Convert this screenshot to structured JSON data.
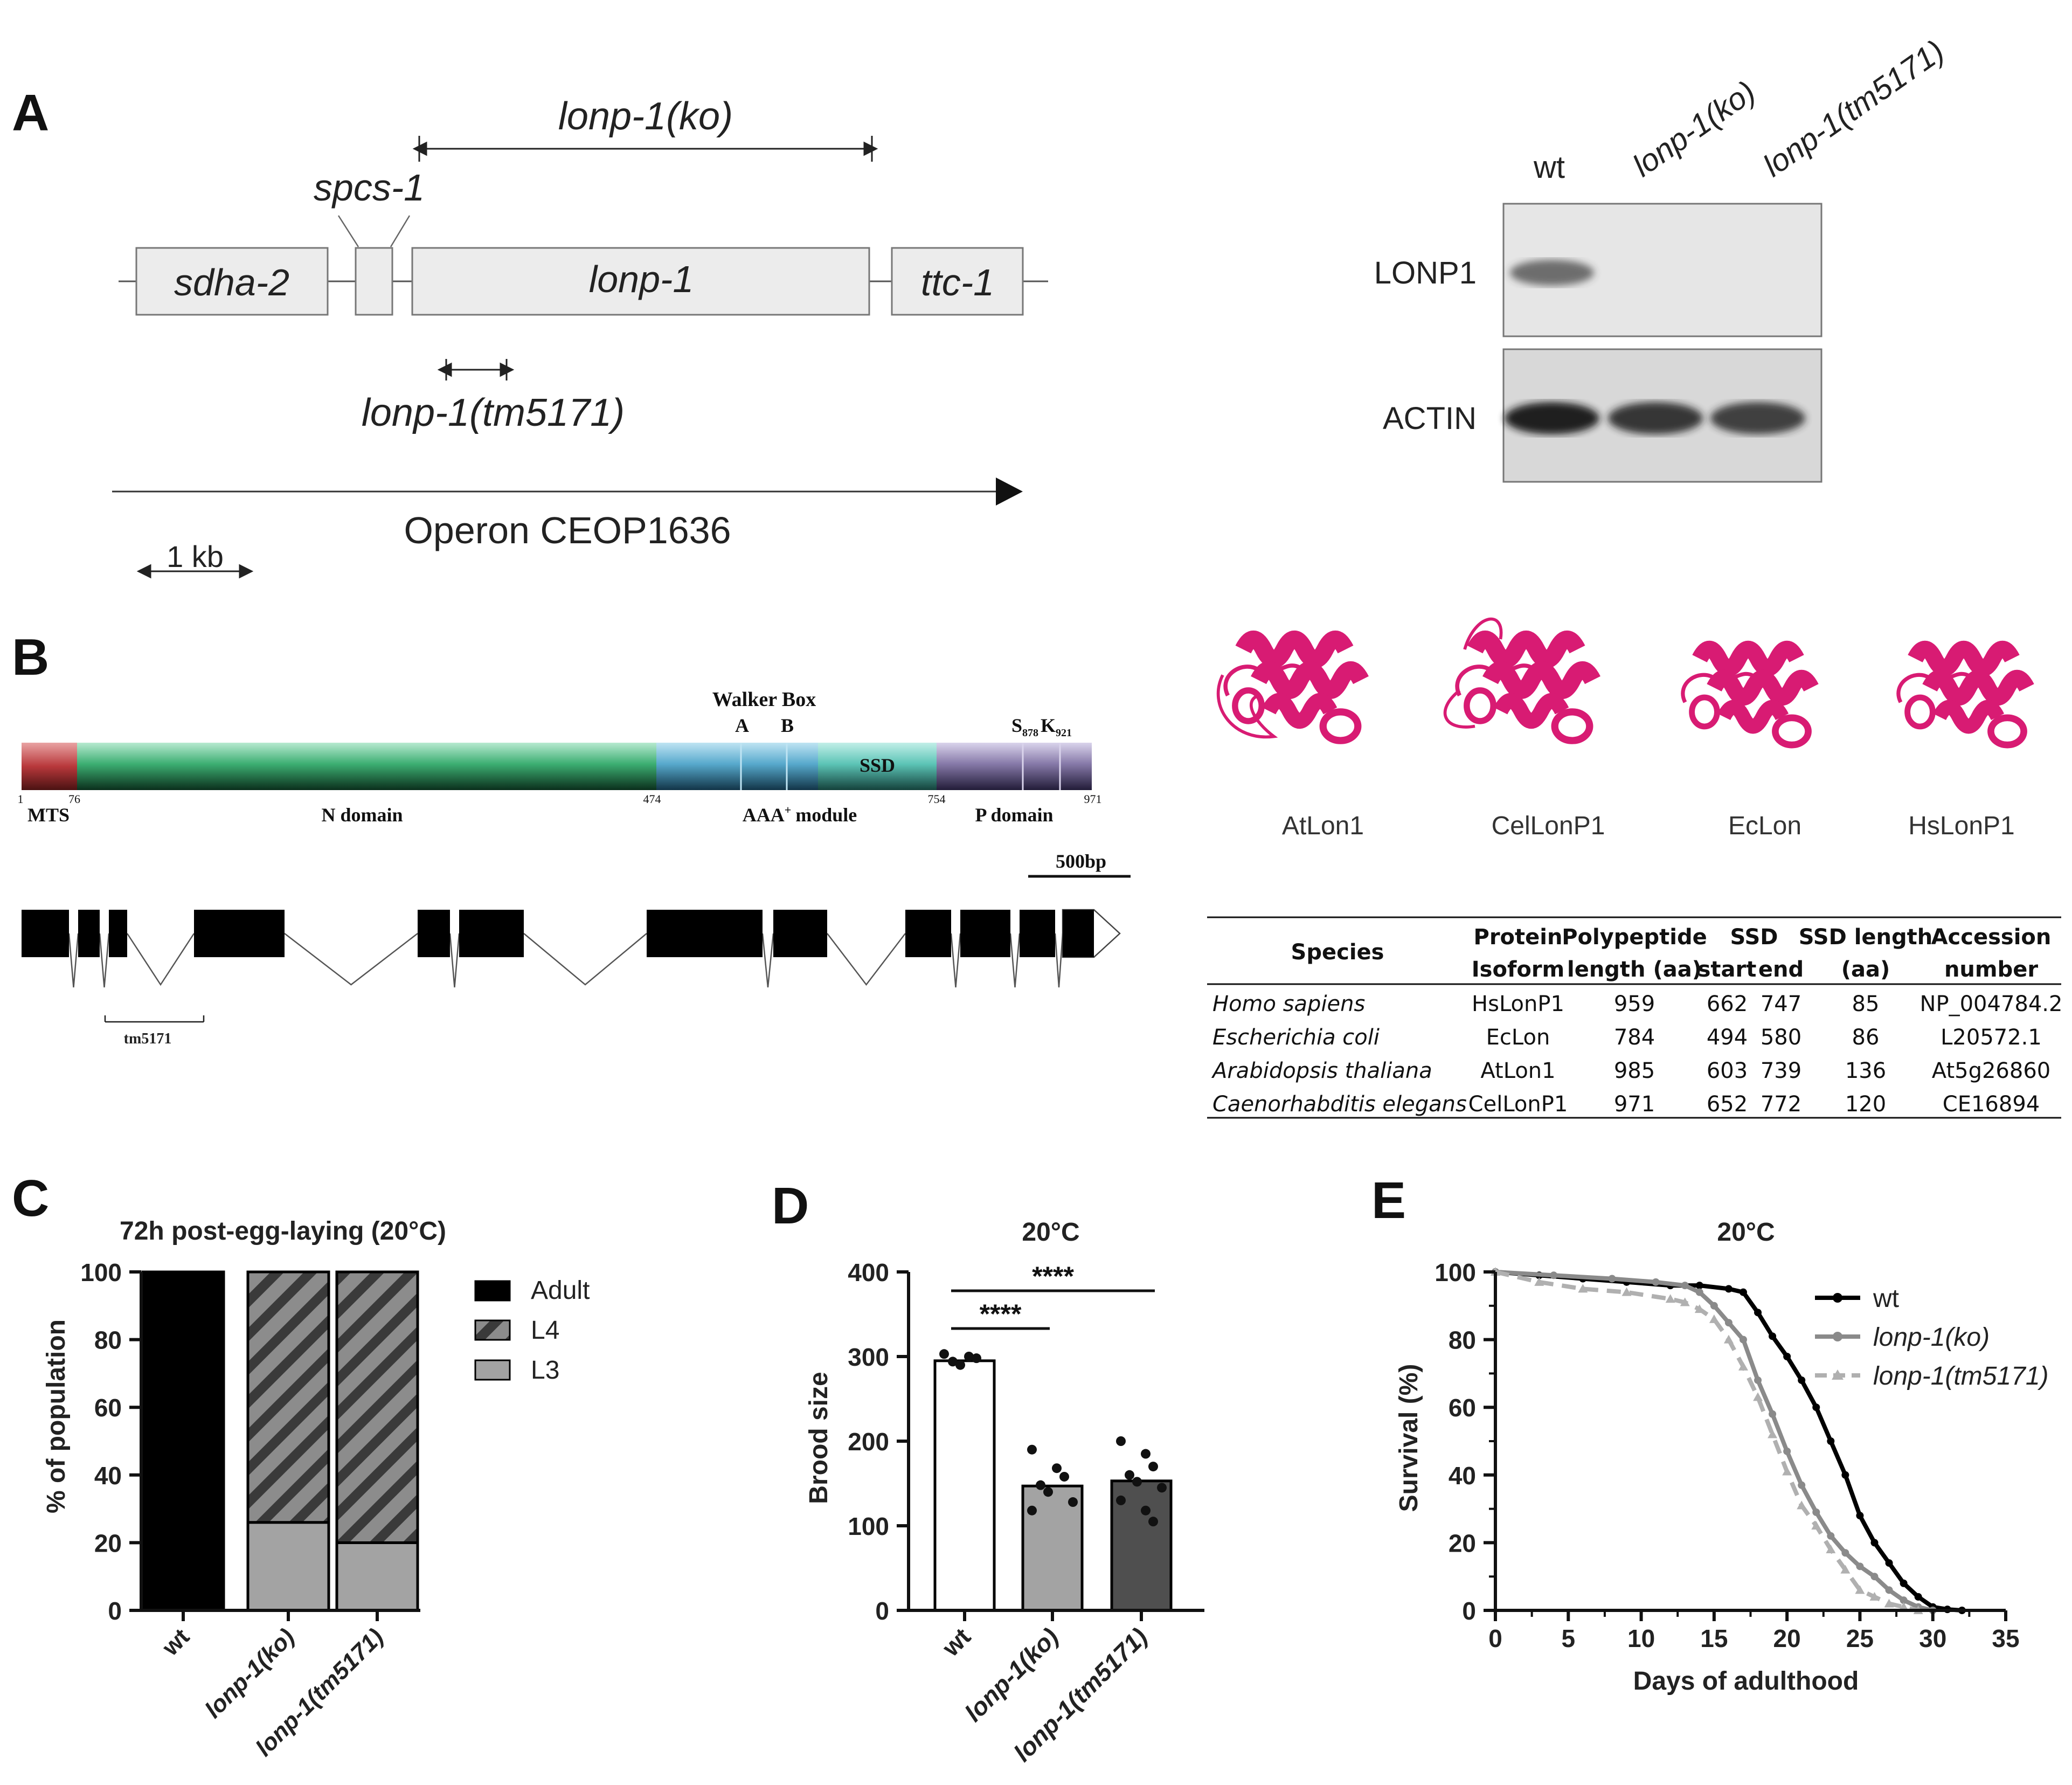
{
  "panels": {
    "A": {
      "letter": "A",
      "genes": [
        {
          "name": "sdha-2"
        },
        {
          "name": "spcs-1"
        },
        {
          "name": "lonp-1"
        },
        {
          "name": "ttc-1"
        }
      ],
      "ko_label": "lonp-1(ko)",
      "tm_label": "lonp-1(tm5171)",
      "operon_label": "Operon CEOP1636",
      "scale_label": "1 kb",
      "blot": {
        "lanes": [
          "wt",
          "lonp-1(ko)",
          "lonp-1(tm5171)"
        ],
        "rows": [
          {
            "label": "LONP1",
            "band_intensity": [
              0.55,
              0,
              0
            ]
          },
          {
            "label": "ACTIN",
            "band_intensity": [
              1.0,
              0.85,
              0.8
            ]
          }
        ]
      }
    },
    "B": {
      "letter": "B",
      "walker_box": {
        "title": "Walker Box",
        "a": "A",
        "b": "B"
      },
      "ssd_label": "SSD",
      "sk_labels": {
        "s": "S",
        "s_sub": "878",
        "k": "K",
        "k_sub": "921"
      },
      "positions": [
        "1",
        "76",
        "474",
        "754",
        "971"
      ],
      "domains": [
        "MTS",
        "N domain",
        "AAA",
        "module",
        "P domain"
      ],
      "aaa_sup": "+",
      "scale_label": "500bp",
      "tm_label": "tm5171",
      "structures": [
        "AtLon1",
        "CelLonP1",
        "EcLon",
        "HsLonP1"
      ],
      "table": {
        "header_top": [
          "Species",
          "Protein",
          "Polypeptide",
          "SSD",
          "SSD length",
          "Accession"
        ],
        "header_bottom": [
          "Isoform",
          "length (aa)",
          "start",
          "end",
          "(aa)",
          "number"
        ],
        "rows": [
          [
            "Homo sapiens",
            "HsLonP1",
            "959",
            "662",
            "747",
            "85",
            "NP_004784.2"
          ],
          [
            "Escherichia coli",
            "EcLon",
            "784",
            "494",
            "580",
            "86",
            "L20572.1"
          ],
          [
            "Arabidopsis thaliana",
            "AtLon1",
            "985",
            "603",
            "739",
            "136",
            "At5g26860"
          ],
          [
            "Caenorhabditis elegans",
            "CelLonP1",
            "971",
            "652",
            "772",
            "120",
            "CE16894"
          ]
        ]
      }
    },
    "C": {
      "letter": "C"
    },
    "D": {
      "letter": "D"
    },
    "E": {
      "letter": "E"
    }
  },
  "colors": {
    "mts": "#b8383b",
    "n_domain": "#3cae72",
    "aaa_domain": "#57a9cc",
    "p_domain": "#8679a8",
    "structure": "#d81b73",
    "bar_ko": "#a3a3a3",
    "bar_tm": "#4f4f4f"
  },
  "chart_data": [
    {
      "type": "bar",
      "stacked": true,
      "title": "72h post-egg-laying (20°C)",
      "ylabel": "% of population",
      "ylim": [
        0,
        100
      ],
      "yticks": [
        "0",
        "20",
        "40",
        "60",
        "80",
        "100"
      ],
      "categories": [
        "wt",
        "lonp-1(ko)",
        "lonp-1(tm5171)"
      ],
      "series": [
        {
          "name": "L3",
          "values": [
            0,
            26,
            20
          ]
        },
        {
          "name": "L4",
          "values": [
            0,
            74,
            80
          ]
        },
        {
          "name": "Adult",
          "values": [
            100,
            0,
            0
          ]
        }
      ],
      "legend": [
        "Adult",
        "L4",
        "L3"
      ],
      "legend_position": "right"
    },
    {
      "type": "bar",
      "title": "20°C",
      "ylabel": "Brood size",
      "ylim": [
        0,
        400
      ],
      "yticks": [
        "0",
        "100",
        "200",
        "300",
        "400"
      ],
      "categories": [
        "wt",
        "lonp-1(ko)",
        "lonp-1(tm5171)"
      ],
      "values": [
        295,
        147,
        153
      ],
      "points": [
        [
          303,
          300,
          298,
          294,
          290
        ],
        [
          190,
          168,
          158,
          148,
          140,
          128,
          118
        ],
        [
          200,
          185,
          170,
          160,
          152,
          145,
          130,
          118,
          105
        ]
      ],
      "significance": [
        {
          "from": 0,
          "to": 1,
          "label": "****"
        },
        {
          "from": 0,
          "to": 2,
          "label": "****"
        }
      ]
    },
    {
      "type": "line",
      "title": "20°C",
      "xlabel": "Days of adulthood",
      "ylabel": "Survival (%)",
      "xlim": [
        0,
        35
      ],
      "ylim": [
        0,
        100
      ],
      "xticks": [
        "0",
        "5",
        "10",
        "15",
        "20",
        "25",
        "30",
        "35"
      ],
      "yticks": [
        "0",
        "20",
        "40",
        "60",
        "80",
        "100"
      ],
      "series": [
        {
          "name": "wt",
          "x": [
            0,
            3,
            6,
            9,
            12,
            14,
            16,
            17,
            18,
            19,
            20,
            21,
            22,
            23,
            24,
            25,
            26,
            27,
            28,
            29,
            30,
            31,
            32
          ],
          "y": [
            100,
            99,
            98,
            97,
            96,
            96,
            95,
            94,
            88,
            81,
            75,
            68,
            60,
            50,
            40,
            28,
            20,
            14,
            8,
            4,
            1,
            0.3,
            0
          ]
        },
        {
          "name": "lonp-1(ko)",
          "x": [
            0,
            4,
            8,
            11,
            13,
            14,
            15,
            16,
            17,
            18,
            19,
            20,
            21,
            22,
            23,
            24,
            25,
            26,
            27,
            28,
            29,
            30
          ],
          "y": [
            100,
            99,
            98,
            97,
            96,
            94,
            90,
            85,
            80,
            68,
            58,
            47,
            37,
            29,
            22,
            17,
            13,
            10,
            6,
            3,
            1,
            0
          ]
        },
        {
          "name": "lonp-1(tm5171)",
          "x": [
            0,
            3,
            6,
            9,
            12,
            13,
            14,
            15,
            16,
            17,
            18,
            19,
            20,
            21,
            22,
            23,
            24,
            25,
            26,
            27,
            28,
            29
          ],
          "y": [
            100,
            97,
            95,
            94,
            92,
            91,
            89,
            86,
            80,
            72,
            63,
            52,
            41,
            31,
            25,
            18,
            12,
            6,
            4,
            2,
            1,
            0
          ]
        }
      ],
      "legend_position": "top-right"
    }
  ]
}
